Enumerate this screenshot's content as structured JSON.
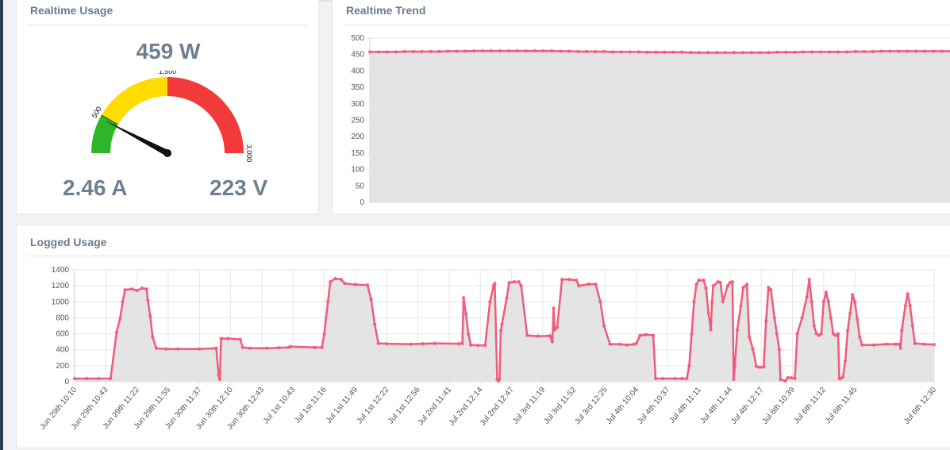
{
  "realtime_usage": {
    "title": "Realtime Usage",
    "power": "459 W",
    "current": "2.46 A",
    "voltage": "223 V",
    "gauge": {
      "min": 0,
      "max": 3000,
      "value": 459,
      "tick_labels": [
        "500",
        "1,500",
        "3,000"
      ],
      "zones": [
        {
          "from": 0,
          "to": 500,
          "color": "#2eb52a"
        },
        {
          "from": 500,
          "to": 1500,
          "color": "#ffdc00"
        },
        {
          "from": 1500,
          "to": 3000,
          "color": "#f23a3a"
        }
      ]
    }
  },
  "realtime_trend": {
    "title": "Realtime Trend",
    "chart_data": {
      "type": "area",
      "ylim": [
        0,
        500
      ],
      "yticks": [
        "500",
        "450",
        "400",
        "350",
        "300",
        "250",
        "200",
        "150",
        "100",
        "50",
        "0"
      ],
      "series": [
        {
          "values": [
            458,
            458,
            458,
            458,
            459,
            459,
            459,
            459,
            459,
            460,
            460,
            460,
            461,
            461,
            461,
            461,
            461,
            461,
            461,
            461,
            461,
            461,
            460,
            460,
            459,
            459,
            459,
            459,
            458,
            458,
            458,
            458,
            457,
            457,
            457,
            457,
            457,
            456,
            456,
            456,
            456,
            456,
            456,
            456,
            456,
            456,
            456,
            457,
            457,
            457,
            458,
            458,
            458,
            458,
            458,
            458,
            459,
            459,
            459,
            460,
            460,
            460,
            460,
            460,
            460,
            460,
            460,
            460
          ]
        }
      ],
      "line_color": "#f05b7c",
      "fill_color": "#e4e4e4"
    }
  },
  "logged_usage": {
    "title": "Logged Usage",
    "chart_data": {
      "type": "area",
      "ylim": [
        0,
        1400
      ],
      "yticks": [
        "1400",
        "1200",
        "1000",
        "800",
        "600",
        "400",
        "200",
        "0"
      ],
      "categories": [
        "Jun 29th 10:10",
        "Jun 29th 10:43",
        "Jun 29th 11:22",
        "Jun 29th 11:55",
        "Jun 30th 11:37",
        "Jun 30th 12:10",
        "Jun 30th 12:43",
        "Jul 1st 10:43",
        "Jul 1st 11:16",
        "Jul 1st 11:49",
        "Jul 1st 12:22",
        "Jul 1st 12:56",
        "Jul 2nd 11:41",
        "Jul 2nd 12:14",
        "Jul 2nd 12:47",
        "Jul 3rd 11:19",
        "Jul 3rd 11:52",
        "Jul 3rd 12:25",
        "Jul 4th 10:04",
        "Jul 4th 10:37",
        "Jul 4th 11:11",
        "Jul 4th 11:44",
        "Jul 4th 12:17",
        "Jul 6th 10:39",
        "Jul 6th 11:12",
        "Jul 6th 11:45",
        "Jul 6th 12:30"
      ],
      "series": [
        {
          "points": [
            [
              0,
              40
            ],
            [
              0.5,
              40
            ],
            [
              1,
              40
            ],
            [
              1.5,
              40
            ],
            [
              1.75,
              620
            ],
            [
              1.9,
              800
            ],
            [
              2,
              1000
            ],
            [
              2.1,
              1150
            ],
            [
              2.4,
              1160
            ],
            [
              2.6,
              1140
            ],
            [
              2.8,
              1170
            ],
            [
              3,
              1160
            ],
            [
              3.05,
              1020
            ],
            [
              3.15,
              820
            ],
            [
              3.25,
              560
            ],
            [
              3.4,
              420
            ],
            [
              3.8,
              410
            ],
            [
              4.3,
              410
            ],
            [
              5.2,
              410
            ],
            [
              5.9,
              420
            ],
            [
              6,
              80
            ],
            [
              6.05,
              30
            ],
            [
              6.1,
              540
            ],
            [
              6.4,
              540
            ],
            [
              6.9,
              530
            ],
            [
              7,
              430
            ],
            [
              7.3,
              420
            ],
            [
              8,
              420
            ],
            [
              8.5,
              425
            ],
            [
              8.9,
              430
            ],
            [
              9,
              440
            ],
            [
              10,
              430
            ],
            [
              10.3,
              430
            ],
            [
              10.4,
              600
            ],
            [
              10.55,
              1000
            ],
            [
              10.65,
              1250
            ],
            [
              10.85,
              1290
            ],
            [
              11.1,
              1280
            ],
            [
              11.25,
              1230
            ],
            [
              11.7,
              1215
            ],
            [
              12.2,
              1210
            ],
            [
              12.35,
              1030
            ],
            [
              12.5,
              720
            ],
            [
              12.65,
              480
            ],
            [
              13,
              475
            ],
            [
              14,
              470
            ],
            [
              14.5,
              475
            ],
            [
              15,
              480
            ],
            [
              16,
              475
            ],
            [
              16.15,
              480
            ],
            [
              16.2,
              1050
            ],
            [
              16.3,
              850
            ],
            [
              16.4,
              600
            ],
            [
              16.5,
              460
            ],
            [
              16.8,
              455
            ],
            [
              17.1,
              455
            ],
            [
              17.3,
              1000
            ],
            [
              17.45,
              1200
            ],
            [
              17.5,
              1230
            ],
            [
              17.6,
              30
            ],
            [
              17.65,
              10
            ],
            [
              17.7,
              30
            ],
            [
              17.75,
              640
            ],
            [
              17.8,
              720
            ],
            [
              18,
              1050
            ],
            [
              18.1,
              1240
            ],
            [
              18.3,
              1250
            ],
            [
              18.5,
              1250
            ],
            [
              18.6,
              1200
            ],
            [
              18.85,
              580
            ],
            [
              19.3,
              570
            ],
            [
              19.8,
              575
            ],
            [
              19.9,
              500
            ],
            [
              19.95,
              920
            ],
            [
              20,
              650
            ],
            [
              20.1,
              680
            ],
            [
              20.3,
              1280
            ],
            [
              20.6,
              1280
            ],
            [
              20.9,
              1270
            ],
            [
              21,
              1200
            ],
            [
              21.4,
              1220
            ],
            [
              21.7,
              1220
            ],
            [
              21.9,
              1000
            ],
            [
              22.05,
              700
            ],
            [
              22.3,
              470
            ],
            [
              22.7,
              470
            ],
            [
              23,
              460
            ],
            [
              23.3,
              470
            ],
            [
              23.4,
              480
            ],
            [
              23.55,
              580
            ],
            [
              23.8,
              590
            ],
            [
              24.1,
              580
            ],
            [
              24.2,
              40
            ],
            [
              24.5,
              40
            ],
            [
              25,
              40
            ],
            [
              25.3,
              40
            ],
            [
              25.5,
              40
            ],
            [
              25.6,
              200
            ],
            [
              25.7,
              600
            ],
            [
              25.8,
              1000
            ],
            [
              25.9,
              1220
            ],
            [
              26,
              1270
            ],
            [
              26.2,
              1270
            ],
            [
              26.3,
              1170
            ],
            [
              26.4,
              860
            ],
            [
              26.5,
              650
            ],
            [
              26.55,
              1000
            ],
            [
              26.6,
              1200
            ],
            [
              26.8,
              1250
            ],
            [
              26.9,
              1240
            ],
            [
              27,
              1000
            ],
            [
              27.2,
              1200
            ],
            [
              27.3,
              1240
            ],
            [
              27.4,
              1250
            ],
            [
              27.45,
              30
            ],
            [
              27.5,
              200
            ],
            [
              27.6,
              650
            ],
            [
              27.75,
              950
            ],
            [
              27.85,
              1180
            ],
            [
              28,
              1220
            ],
            [
              28.1,
              560
            ],
            [
              28.25,
              410
            ],
            [
              28.4,
              190
            ],
            [
              28.55,
              180
            ],
            [
              28.7,
              185
            ],
            [
              28.8,
              760
            ],
            [
              28.9,
              1180
            ],
            [
              29,
              1150
            ],
            [
              29.15,
              800
            ],
            [
              29.25,
              600
            ],
            [
              29.35,
              400
            ],
            [
              29.4,
              30
            ],
            [
              29.6,
              10
            ],
            [
              29.7,
              50
            ],
            [
              29.85,
              50
            ],
            [
              30,
              40
            ],
            [
              30.1,
              600
            ],
            [
              30.3,
              800
            ],
            [
              30.5,
              1060
            ],
            [
              30.6,
              1280
            ],
            [
              30.7,
              1000
            ],
            [
              30.8,
              700
            ],
            [
              30.9,
              600
            ],
            [
              31,
              580
            ],
            [
              31.1,
              600
            ],
            [
              31.2,
              1000
            ],
            [
              31.3,
              1120
            ],
            [
              31.4,
              1000
            ],
            [
              31.5,
              800
            ],
            [
              31.6,
              600
            ],
            [
              31.7,
              580
            ],
            [
              31.8,
              600
            ],
            [
              31.85,
              40
            ],
            [
              31.9,
              40
            ],
            [
              32,
              60
            ],
            [
              32.1,
              260
            ],
            [
              32.2,
              640
            ],
            [
              32.3,
              860
            ],
            [
              32.4,
              1090
            ],
            [
              32.5,
              1000
            ],
            [
              32.6,
              780
            ],
            [
              32.7,
              560
            ],
            [
              32.8,
              460
            ],
            [
              33.3,
              460
            ],
            [
              33.8,
              470
            ],
            [
              34.2,
              470
            ],
            [
              34.35,
              470
            ],
            [
              34.4,
              420
            ],
            [
              34.45,
              640
            ],
            [
              34.6,
              950
            ],
            [
              34.7,
              1100
            ],
            [
              34.8,
              950
            ],
            [
              34.9,
              700
            ],
            [
              35,
              480
            ],
            [
              35.4,
              470
            ],
            [
              35.8,
              465
            ]
          ]
        }
      ],
      "x_max": 35.8,
      "label_indices": [
        0,
        1.3,
        2.6,
        3.9,
        5.2,
        6.5,
        7.8,
        9.1,
        10.4,
        11.7,
        13,
        14.3,
        15.6,
        16.9,
        18.2,
        19.5,
        20.8,
        22.1,
        23.4,
        24.7,
        26,
        27.3,
        28.6,
        29.9,
        31.2,
        32.5,
        35.8
      ],
      "line_color": "#f05b7c",
      "fill_color": "#e4e4e4"
    }
  }
}
